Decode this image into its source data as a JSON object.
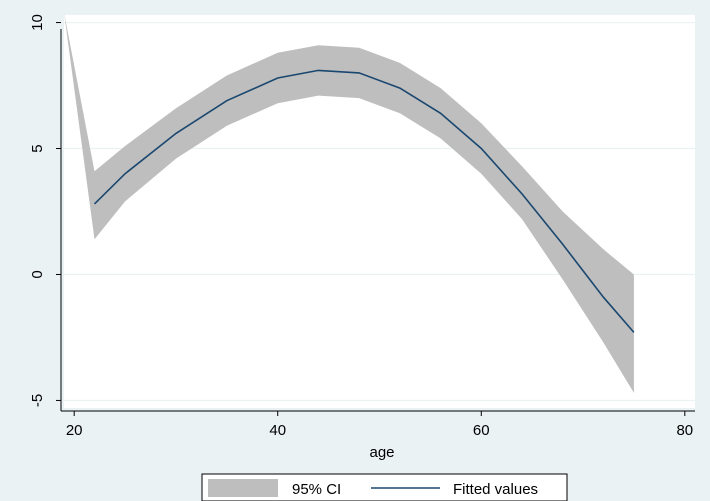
{
  "chart_data": {
    "type": "line",
    "xlabel": "age",
    "ylabel": "",
    "xlim": [
      19,
      81
    ],
    "ylim": [
      -5.3,
      10.3
    ],
    "x_ticks": [
      20,
      40,
      60,
      80
    ],
    "y_ticks": [
      -5,
      0,
      5,
      10
    ],
    "grid": true,
    "legend_position": "bottom",
    "series": [
      {
        "name": "95% CI",
        "kind": "band",
        "color": "#bebebe",
        "x": [
          19,
          22,
          25,
          30,
          35,
          40,
          44,
          48,
          52,
          56,
          60,
          64,
          68,
          72,
          75
        ],
        "lower": [
          10.4,
          1.4,
          2.9,
          4.6,
          5.9,
          6.8,
          7.1,
          7.0,
          6.4,
          5.4,
          4.0,
          2.2,
          -0.2,
          -2.7,
          -4.7
        ],
        "upper": [
          10.4,
          4.1,
          5.1,
          6.6,
          7.9,
          8.8,
          9.1,
          9.0,
          8.4,
          7.4,
          6.0,
          4.3,
          2.5,
          1.0,
          0.0
        ]
      },
      {
        "name": "Fitted values",
        "kind": "line",
        "color": "#1a476f",
        "x": [
          22,
          25,
          30,
          35,
          40,
          44,
          48,
          52,
          56,
          60,
          64,
          68,
          72,
          75
        ],
        "y": [
          2.8,
          4.0,
          5.6,
          6.9,
          7.8,
          8.1,
          8.0,
          7.4,
          6.4,
          5.0,
          3.2,
          1.2,
          -0.9,
          -2.3
        ]
      }
    ],
    "colors": {
      "band": "#bebebe",
      "line": "#1a476f",
      "background": "#eaf2f3",
      "plot_bg": "#ffffff"
    }
  }
}
